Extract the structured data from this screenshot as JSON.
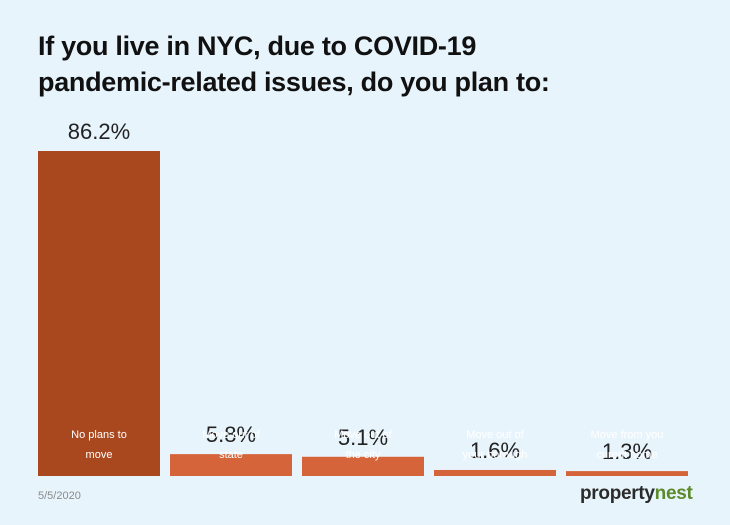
{
  "title_lines": [
    "If you live in NYC, due to COVID-19",
    "pandemic-related issues, do you plan to:"
  ],
  "date": "5/5/2020",
  "logo": {
    "part1": "property",
    "part2": "nest"
  },
  "colors": {
    "first_bar": "#a9471f",
    "other_bars": "#d6643a",
    "background": "#e8f4fc"
  },
  "chart_data": {
    "type": "bar",
    "categories": [
      [
        "No plans to",
        "move"
      ],
      [
        "Move out of",
        "state"
      ],
      [
        "Move out of",
        "the city"
      ],
      [
        "Move out of",
        "your borough"
      ],
      [
        "Move from you",
        "curent home"
      ]
    ],
    "values": [
      86.2,
      5.8,
      5.1,
      1.6,
      1.3
    ],
    "value_labels": [
      "86.2%",
      "5.8%",
      "5.1%",
      "1.6%",
      "1.3%"
    ],
    "ylim": [
      0,
      100
    ]
  }
}
